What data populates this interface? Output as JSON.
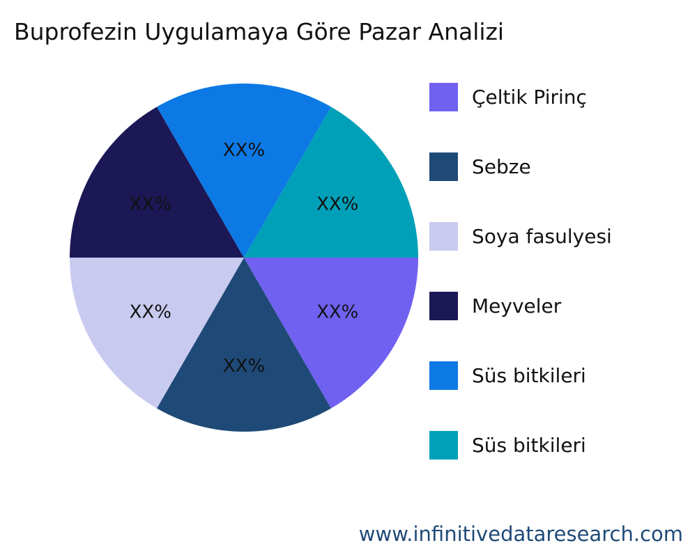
{
  "chart_data": {
    "type": "pie",
    "title": "Buprofezin Uygulamaya Göre Pazar Analizi",
    "categories": [
      "Çeltik Pirinç",
      "Sebze",
      "Soya fasulyesi",
      "Meyveler",
      "Süs bitkileri",
      "Süs bitkileri"
    ],
    "values": [
      16.67,
      16.67,
      16.67,
      16.67,
      16.67,
      16.67
    ],
    "data_labels": [
      "XX%",
      "XX%",
      "XX%",
      "XX%",
      "XX%",
      "XX%"
    ],
    "colors": [
      "#7061F1",
      "#1F4A78",
      "#C9CAF0",
      "#1C1856",
      "#0C79E4",
      "#00A0B8"
    ],
    "legend_position": "right"
  },
  "footer": "www.infinitivedataresearch.com"
}
